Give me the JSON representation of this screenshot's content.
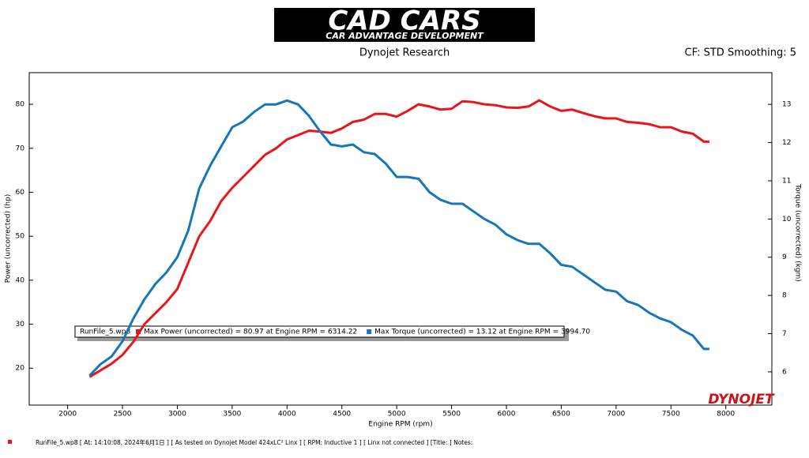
{
  "header": {
    "logo": "CAD CARS",
    "logo_sub": "CAR ADVANTAGE DEVELOPMENT",
    "subtitle": "Dynojet Research",
    "settings": "CF: STD Smoothing: 5"
  },
  "chart_data": {
    "type": "line",
    "x_label": "Engine RPM (rpm)",
    "y_label": "Power (uncorrected) (hp)",
    "y2_label": "Torque (uncorrected) (kgm)",
    "x": [
      2200,
      2300,
      2400,
      2500,
      2600,
      2700,
      2800,
      2900,
      3000,
      3100,
      3200,
      3300,
      3400,
      3500,
      3600,
      3700,
      3800,
      3900,
      4000,
      4100,
      4200,
      4300,
      4400,
      4500,
      4600,
      4700,
      4800,
      4900,
      5000,
      5100,
      5200,
      5300,
      5400,
      5500,
      5600,
      5700,
      5800,
      5900,
      6000,
      6100,
      6200,
      6300,
      6400,
      6500,
      6600,
      6700,
      6800,
      6900,
      7000,
      7100,
      7200,
      7300,
      7400,
      7500,
      7600,
      7700,
      7800,
      7850
    ],
    "legend_title": "RunFile_5.wp8",
    "series": [
      {
        "name": "Max Power (uncorrected) = 80.97 at Engine RPM = 6314.22",
        "color": "#e8161b",
        "axis": "y",
        "values": [
          18,
          19.5,
          21,
          23,
          26,
          30,
          32.5,
          35,
          38,
          44,
          50,
          53.5,
          58,
          61,
          63.5,
          66,
          68.5,
          70,
          72,
          73,
          74,
          73.8,
          73.5,
          74.5,
          76,
          76.5,
          77.8,
          77.8,
          77.2,
          78.5,
          80,
          79.5,
          78.8,
          79,
          80.7,
          80.5,
          80,
          79.8,
          79.3,
          79.2,
          79.5,
          80.9,
          79.5,
          78.5,
          78.8,
          78,
          77.3,
          76.8,
          76.8,
          76,
          75.8,
          75.5,
          74.8,
          74.8,
          73.8,
          73.3,
          71.5,
          71.5
        ]
      },
      {
        "name": "Max Torque (uncorrected) = 13.12 at Engine RPM = 3994.70",
        "color": "#1577b8",
        "axis": "y2",
        "values": [
          5.9,
          6.2,
          6.4,
          6.8,
          7.4,
          7.9,
          8.3,
          8.6,
          9.0,
          9.7,
          10.8,
          11.4,
          11.9,
          12.4,
          12.55,
          12.8,
          13.0,
          13.0,
          13.1,
          13.0,
          12.7,
          12.3,
          11.95,
          11.9,
          11.95,
          11.75,
          11.7,
          11.45,
          11.1,
          11.1,
          11.05,
          10.7,
          10.5,
          10.4,
          10.4,
          10.2,
          10.0,
          9.85,
          9.6,
          9.45,
          9.35,
          9.35,
          9.1,
          8.8,
          8.75,
          8.55,
          8.35,
          8.15,
          8.1,
          7.85,
          7.75,
          7.55,
          7.4,
          7.3,
          7.1,
          6.95,
          6.6,
          6.6
        ]
      }
    ],
    "xlim": [
      1650,
      8420
    ],
    "xticks": [
      2000,
      2500,
      3000,
      3500,
      4000,
      4500,
      5000,
      5500,
      6000,
      6500,
      7000,
      7500,
      8000
    ],
    "ylim": [
      11.6,
      87.2
    ],
    "yticks": [
      20,
      30,
      40,
      50,
      60,
      70,
      80
    ],
    "y2lim": [
      5.13,
      13.83
    ],
    "y2ticks": [
      6,
      7,
      8,
      9,
      10,
      11,
      12,
      13
    ],
    "watermark": "DYNOJET"
  },
  "footer": "RunFile_5.wp8  [ At:  14:10:08,  2024年6月1日 ] [ As tested on Dynojet Model 424xLC² Linx ] [ RPM: Inductive 1 ] [ Linx not connected ] [Title: ]  Notes:"
}
